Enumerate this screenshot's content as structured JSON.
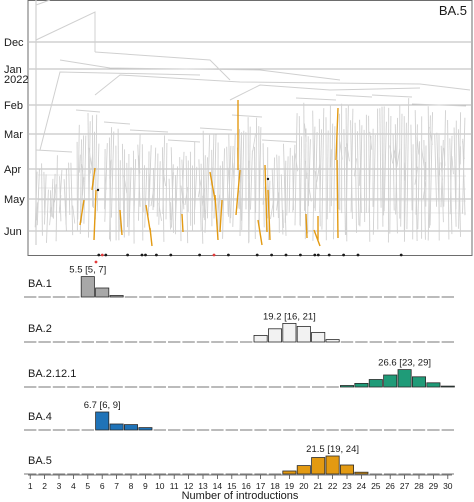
{
  "chart_data": [
    {
      "type": "tree-timeline",
      "title": "BA.5",
      "y_ticks": [
        "Dec",
        "Jan",
        "2022",
        "Feb",
        "Mar",
        "Apr",
        "May",
        "Jun"
      ],
      "colors": {
        "branches": "#d0d0d0",
        "highlight": "#e39a12",
        "grid": "#b8b8b8",
        "dot": "#1a1a1a",
        "dot_alt": "#e23b3b"
      },
      "tip_markers": [
        {
          "group": 6
        },
        {
          "group": 6
        },
        {
          "group": 6
        },
        {
          "group": 8
        },
        {
          "group": 9
        },
        {
          "group": 9
        },
        {
          "group": 10
        },
        {
          "group": 11
        },
        {
          "group": 13
        },
        {
          "group": 14
        },
        {
          "group": 15
        },
        {
          "group": 17
        },
        {
          "group": 18
        },
        {
          "group": 19
        },
        {
          "group": 20
        },
        {
          "group": 21
        },
        {
          "group": 21
        },
        {
          "group": 22
        },
        {
          "group": 23
        },
        {
          "group": 24
        },
        {
          "group": 27
        }
      ]
    },
    {
      "type": "bar",
      "xlabel": "Number of introductions",
      "x": [
        1,
        2,
        3,
        4,
        5,
        6,
        7,
        8,
        9,
        10,
        11,
        12,
        13,
        14,
        15,
        16,
        17,
        18,
        19,
        20,
        21,
        22,
        23,
        24,
        25,
        26,
        27,
        28,
        29,
        30
      ],
      "series": [
        {
          "name": "BA.1",
          "color": "#a8a8a8",
          "label": "5.5 [5, 7]",
          "values": [
            0,
            0,
            0,
            0,
            0.68,
            0.3,
            0.05,
            0,
            0,
            0,
            0,
            0,
            0,
            0,
            0,
            0,
            0,
            0,
            0,
            0,
            0,
            0,
            0,
            0,
            0,
            0,
            0,
            0,
            0,
            0
          ]
        },
        {
          "name": "BA.2",
          "color": "#f2f2f2",
          "label": "19.2 [16, 21]",
          "values": [
            0,
            0,
            0,
            0,
            0,
            0,
            0,
            0,
            0,
            0,
            0,
            0,
            0,
            0,
            0,
            0,
            0.22,
            0.44,
            0.62,
            0.52,
            0.32,
            0.08,
            0,
            0,
            0,
            0,
            0,
            0,
            0,
            0
          ]
        },
        {
          "name": "BA.2.12.1",
          "color": "#1f9b78",
          "label": "26.6 [23, 29]",
          "values": [
            0,
            0,
            0,
            0,
            0,
            0,
            0,
            0,
            0,
            0,
            0,
            0,
            0,
            0,
            0,
            0,
            0,
            0,
            0,
            0,
            0,
            0,
            0.05,
            0.12,
            0.25,
            0.4,
            0.58,
            0.34,
            0.14,
            0.03
          ]
        },
        {
          "name": "BA.4",
          "color": "#1f73b8",
          "label": "6.7 [6, 9]",
          "values": [
            0,
            0,
            0,
            0,
            0,
            0.6,
            0.2,
            0.18,
            0.08,
            0,
            0,
            0,
            0,
            0,
            0,
            0,
            0,
            0,
            0,
            0,
            0,
            0,
            0,
            0,
            0,
            0,
            0,
            0,
            0,
            0
          ]
        },
        {
          "name": "BA.5",
          "color": "#e39a12",
          "label": "21.5 [19, 24]",
          "values": [
            0,
            0,
            0,
            0,
            0,
            0,
            0,
            0,
            0,
            0,
            0,
            0,
            0,
            0,
            0,
            0,
            0,
            0,
            0.1,
            0.28,
            0.55,
            0.6,
            0.3,
            0.06,
            0,
            0,
            0,
            0,
            0,
            0
          ]
        }
      ]
    }
  ]
}
